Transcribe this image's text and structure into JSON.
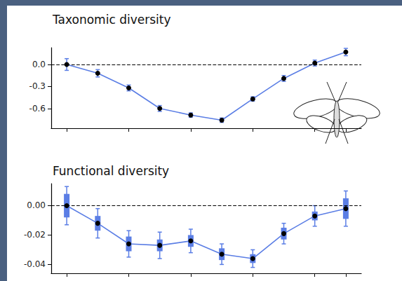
{
  "chart_data": [
    {
      "type": "line",
      "title": "Taxonomic diversity",
      "categories": [
        null,
        null,
        null,
        null,
        null,
        null,
        null,
        null,
        null,
        null
      ],
      "series": [
        {
          "color": "#5b7ee5",
          "marker": "circle",
          "line_style": "solid",
          "values": [
            0,
            -0.12,
            -0.32,
            -0.6,
            -0.69,
            -0.76,
            -0.47,
            -0.19,
            0.02,
            0.17
          ],
          "errors": [
            0.08,
            0.05,
            0.04,
            0.04,
            0.03,
            0.03,
            0.03,
            0.04,
            0.04,
            0.05
          ]
        }
      ],
      "ylim": [
        -0.87,
        0.23
      ],
      "yticks": [
        {
          "value": 0,
          "label": "0.0"
        },
        -0.3,
        -0.6
      ],
      "reference_line": 0,
      "grid": false,
      "tick_labels": "y"
    },
    {
      "type": "line",
      "title": "Functional diversity",
      "categories": [
        null,
        null,
        null,
        null,
        null,
        null,
        null,
        null,
        null,
        null
      ],
      "series": [
        {
          "color": "#5b7ee5",
          "marker": "circle",
          "line_style": "solid",
          "values": [
            0,
            -0.012,
            -0.026,
            -0.027,
            -0.024,
            -0.033,
            -0.036,
            -0.019,
            -0.007,
            -0.002
          ],
          "errors": [
            0.013,
            0.01,
            0.009,
            0.009,
            0.008,
            0.007,
            0.006,
            0.007,
            0.007,
            0.012
          ],
          "errors_inner": [
            0.008,
            0.005,
            0.005,
            0.004,
            0.004,
            0.004,
            0.003,
            0.004,
            0.003,
            0.007
          ]
        }
      ],
      "ylim": [
        -0.046,
        0.015
      ],
      "yticks": [
        {
          "value": 0,
          "label": "0.00"
        },
        -0.02,
        -0.04
      ],
      "reference_line": 0,
      "grid": false,
      "tick_labels": "y"
    }
  ]
}
